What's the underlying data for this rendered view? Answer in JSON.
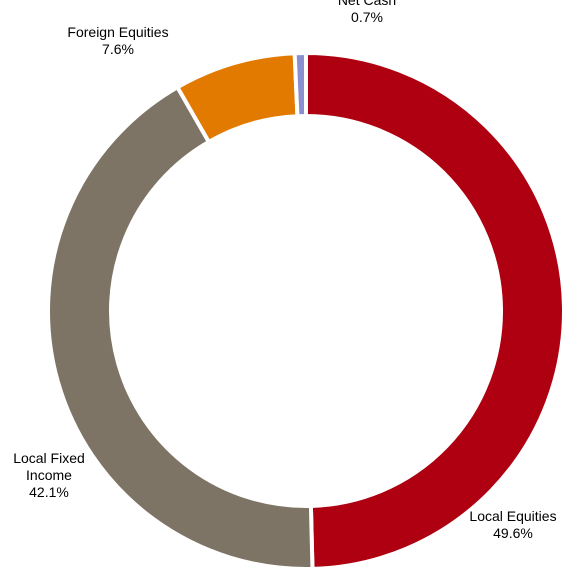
{
  "chart_data": {
    "type": "pie",
    "variant": "donut",
    "start": "12 o'clock",
    "direction": "clockwise",
    "slices": [
      {
        "label_lines": [
          "Local Equities"
        ],
        "value_label": "49.6%",
        "value": 49.6,
        "color": "#AE0011"
      },
      {
        "label_lines": [
          "Local Fixed",
          "Income"
        ],
        "value_label": "42.1%",
        "value": 42.1,
        "color": "#7E7466"
      },
      {
        "label_lines": [
          "Foreign Equities"
        ],
        "value_label": "7.6%",
        "value": 7.6,
        "color": "#E37A00"
      },
      {
        "label_lines": [
          "Net Cash"
        ],
        "value_label": "0.7%",
        "value": 0.7,
        "color": "#8C8FCF"
      }
    ]
  }
}
